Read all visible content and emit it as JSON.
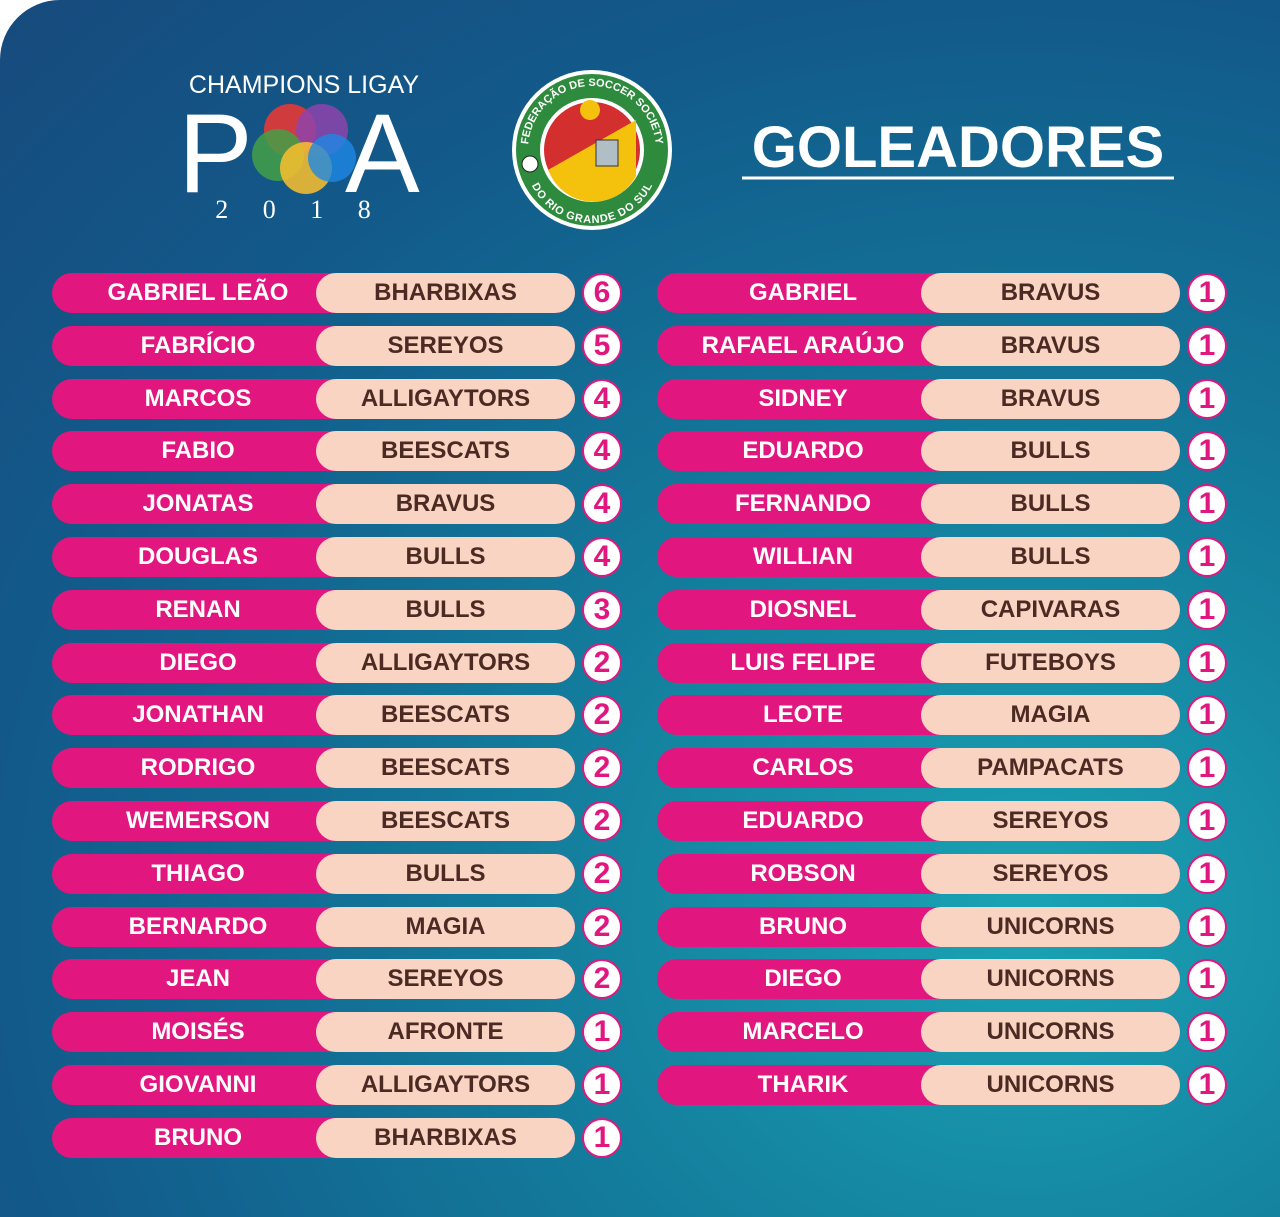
{
  "header": {
    "league": "CHAMPIONS LIGAY",
    "logo_left": "P",
    "logo_right": "A",
    "year": "2 0 1 8",
    "badge_top": "FEDERAÇÃO DE SOCCER SOCIETY",
    "badge_bottom": "DO RIO GRANDE DO SUL",
    "title": "GOLEADORES"
  },
  "columns": [
    [
      {
        "name": "GABRIEL LEÃO",
        "team": "BHARBIXAS",
        "goals": 6
      },
      {
        "name": "FABRÍCIO",
        "team": "SEREYOS",
        "goals": 5
      },
      {
        "name": "MARCOS",
        "team": "ALLIGAYTORS",
        "goals": 4
      },
      {
        "name": "FABIO",
        "team": "BEESCATS",
        "goals": 4
      },
      {
        "name": "JONATAS",
        "team": "BRAVUS",
        "goals": 4
      },
      {
        "name": "DOUGLAS",
        "team": "BULLS",
        "goals": 4
      },
      {
        "name": "RENAN",
        "team": "BULLS",
        "goals": 3
      },
      {
        "name": "DIEGO",
        "team": "ALLIGAYTORS",
        "goals": 2
      },
      {
        "name": "JONATHAN",
        "team": "BEESCATS",
        "goals": 2
      },
      {
        "name": "RODRIGO",
        "team": "BEESCATS",
        "goals": 2
      },
      {
        "name": "WEMERSON",
        "team": "BEESCATS",
        "goals": 2
      },
      {
        "name": "THIAGO",
        "team": "BULLS",
        "goals": 2
      },
      {
        "name": "BERNARDO",
        "team": "MAGIA",
        "goals": 2
      },
      {
        "name": "JEAN",
        "team": "SEREYOS",
        "goals": 2
      },
      {
        "name": "MOISÉS",
        "team": "AFRONTE",
        "goals": 1
      },
      {
        "name": "GIOVANNI",
        "team": "ALLIGAYTORS",
        "goals": 1
      },
      {
        "name": "BRUNO",
        "team": "BHARBIXAS",
        "goals": 1
      }
    ],
    [
      {
        "name": "GABRIEL",
        "team": "BRAVUS",
        "goals": 1
      },
      {
        "name": "RAFAEL ARAÚJO",
        "team": "BRAVUS",
        "goals": 1
      },
      {
        "name": "SIDNEY",
        "team": "BRAVUS",
        "goals": 1
      },
      {
        "name": "EDUARDO",
        "team": "BULLS",
        "goals": 1
      },
      {
        "name": "FERNANDO",
        "team": "BULLS",
        "goals": 1
      },
      {
        "name": "WILLIAN",
        "team": "BULLS",
        "goals": 1
      },
      {
        "name": "DIOSNEL",
        "team": "CAPIVARAS",
        "goals": 1
      },
      {
        "name": "LUIS FELIPE",
        "team": "FUTEBOYS",
        "goals": 1
      },
      {
        "name": "LEOTE",
        "team": "MAGIA",
        "goals": 1
      },
      {
        "name": "CARLOS",
        "team": "PAMPACATS",
        "goals": 1
      },
      {
        "name": "EDUARDO",
        "team": "SEREYOS",
        "goals": 1
      },
      {
        "name": "ROBSON",
        "team": "SEREYOS",
        "goals": 1
      },
      {
        "name": "BRUNO",
        "team": "UNICORNS",
        "goals": 1
      },
      {
        "name": "DIEGO",
        "team": "UNICORNS",
        "goals": 1
      },
      {
        "name": "MARCELO",
        "team": "UNICORNS",
        "goals": 1
      },
      {
        "name": "THARIK",
        "team": "UNICORNS",
        "goals": 1
      }
    ]
  ]
}
